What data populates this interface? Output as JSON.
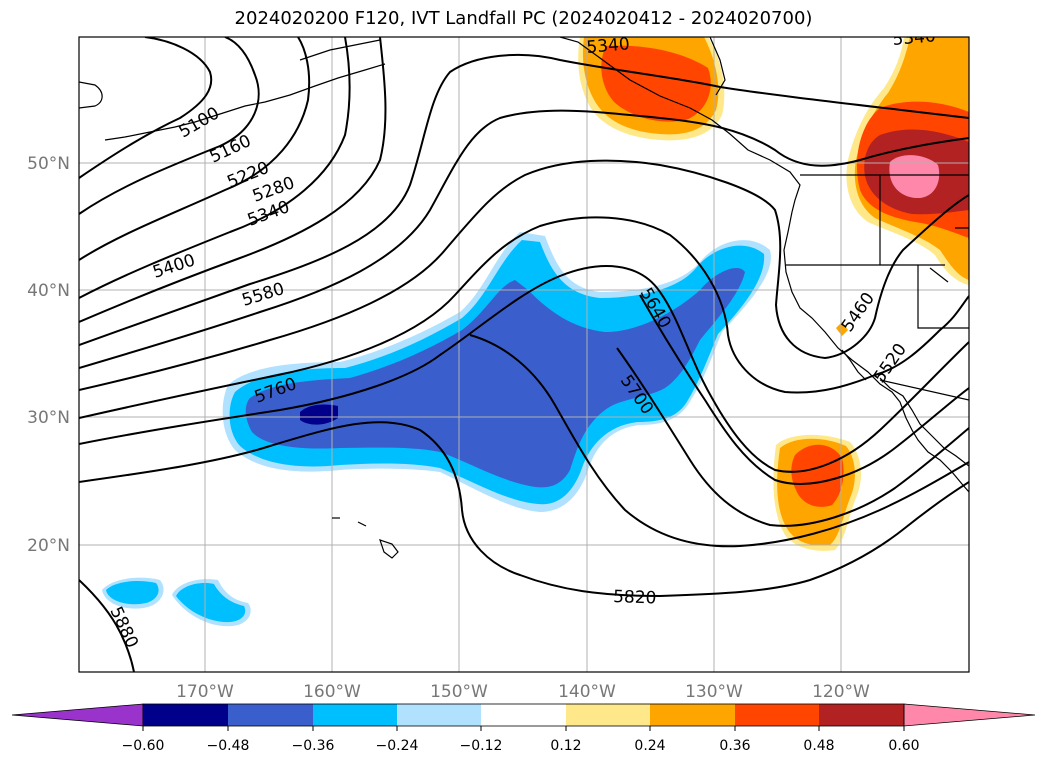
{
  "title": "2024020200 F120, IVT Landfall PC (2024020412 - 2024020700)",
  "lat_labels": [
    "50°N",
    "40°N",
    "30°N",
    "20°N"
  ],
  "lon_labels": [
    "170°W",
    "160°W",
    "150°W",
    "140°W",
    "130°W",
    "120°W"
  ],
  "contour_labels": [
    "5100",
    "5160",
    "5220",
    "5280",
    "5340",
    "5400",
    "5580",
    "5760",
    "5640",
    "5700",
    "5820",
    "5880",
    "5460",
    "5520",
    "5340",
    "5340"
  ],
  "colorbar": {
    "ticks": [
      "−0.60",
      "−0.48",
      "−0.36",
      "−0.24",
      "−0.12",
      "0.12",
      "0.24",
      "0.36",
      "0.48",
      "0.60"
    ],
    "colors": [
      "#9933cc",
      "#00008b",
      "#3a5fcd",
      "#00bfff",
      "#b0e2ff",
      "#ffffff",
      "#ffe88a",
      "#ffa500",
      "#ff4500",
      "#b22222",
      "#ff88aa"
    ]
  },
  "colors": {
    "neg_strong": "#00008b",
    "neg_mid": "#3a5fcd",
    "neg_weak": "#00bfff",
    "neg_faint": "#b0e2ff",
    "pos_faint": "#ffe88a",
    "pos_weak": "#ffa500",
    "pos_mid": "#ff4500",
    "pos_strong": "#b22222",
    "pos_max": "#ff88aa"
  }
}
